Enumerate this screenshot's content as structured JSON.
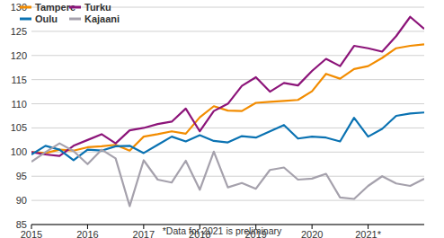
{
  "chart_data": {
    "type": "line",
    "annotation": "*Data for 2021 is preliminary",
    "categories": [
      "2015",
      null,
      null,
      null,
      "2016",
      null,
      null,
      null,
      "2017",
      null,
      null,
      null,
      "2018",
      null,
      null,
      null,
      "2019",
      null,
      null,
      null,
      "2020",
      null,
      null,
      null,
      "2021*",
      null,
      null,
      null,
      null
    ],
    "series": [
      {
        "name": "Tampere",
        "color": "#f28c00",
        "values": [
          100,
          99.8,
          100.5,
          100.3,
          101,
          101.2,
          101.5,
          100.3,
          103.2,
          103.7,
          104.3,
          103.8,
          107.2,
          109.5,
          108.6,
          108.5,
          110.2,
          110.4,
          110.6,
          110.8,
          112.6,
          116.2,
          115.2,
          117.2,
          117.8,
          119.5,
          121.5,
          122,
          122.3
        ]
      },
      {
        "name": "Turku",
        "color": "#8c1479",
        "values": [
          100,
          99.5,
          99.2,
          101.3,
          102.5,
          103.7,
          101.8,
          104.5,
          105,
          105.8,
          106.3,
          109,
          104.3,
          108.5,
          110,
          113.7,
          115.5,
          112.5,
          114.3,
          113.8,
          116.8,
          119.3,
          117.8,
          122,
          121.5,
          120.8,
          124,
          128,
          125.5
        ]
      },
      {
        "name": "Oulu",
        "color": "#0a72b2",
        "values": [
          99.5,
          101.3,
          100.5,
          98.3,
          100.5,
          100.3,
          101.2,
          101.3,
          99.8,
          101.5,
          103.2,
          102.2,
          103.5,
          102.3,
          102,
          103.3,
          103,
          104.3,
          105.6,
          102.8,
          103.2,
          103,
          102.2,
          107.1,
          103.2,
          104.8,
          107.5,
          108,
          108.2
        ]
      },
      {
        "name": "Kajaani",
        "color": "#a5a1ac",
        "values": [
          98,
          100,
          101.8,
          100.2,
          97.5,
          100.5,
          98.7,
          88.8,
          98.3,
          94.3,
          93.7,
          98.2,
          92.2,
          100.1,
          92.7,
          93.6,
          92.4,
          96.3,
          96.8,
          94.3,
          94.5,
          95.5,
          90.6,
          90.3,
          93,
          95,
          93.5,
          93,
          94.5
        ]
      }
    ],
    "ylim": [
      85,
      130
    ],
    "yticks": [
      85,
      90,
      95,
      100,
      105,
      110,
      115,
      120,
      125,
      130
    ],
    "grid": true,
    "legend": "top-left"
  }
}
